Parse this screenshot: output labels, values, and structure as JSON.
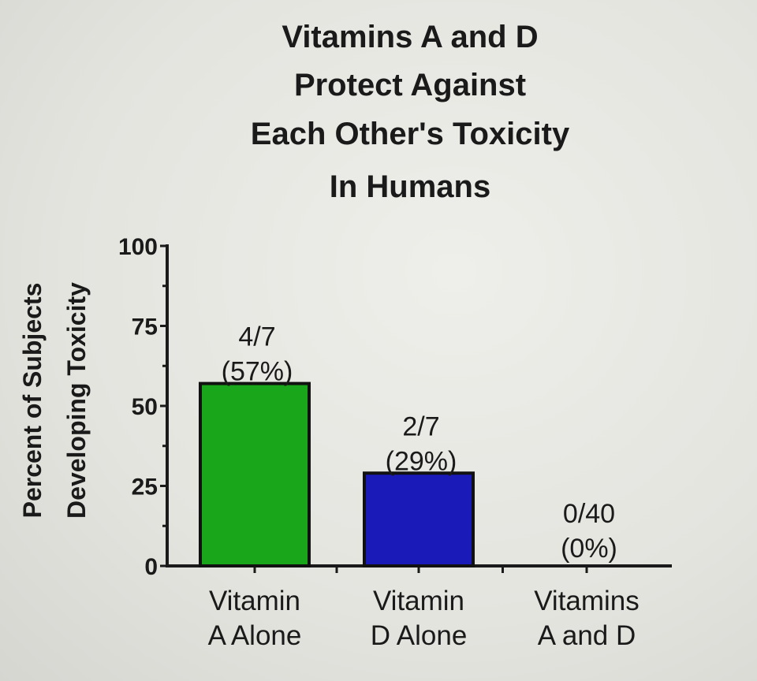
{
  "chart_data": {
    "type": "bar",
    "title_lines": [
      "Vitamins A and D",
      "Protect Against",
      "Each Other's Toxicity",
      "In Humans"
    ],
    "ylabel_lines": [
      "Percent of Subjects",
      "Developing Toxicity"
    ],
    "ylim": [
      0,
      100
    ],
    "yticks": [
      0,
      25,
      50,
      75,
      100
    ],
    "grid": false,
    "legend": "none",
    "categories": [
      {
        "lines": [
          "Vitamin",
          "A Alone"
        ]
      },
      {
        "lines": [
          "Vitamin",
          "D Alone"
        ]
      },
      {
        "lines": [
          "Vitamins",
          "A and D"
        ]
      }
    ],
    "values": [
      57,
      29,
      0
    ],
    "data_labels": [
      [
        "4/7",
        "(57%)"
      ],
      [
        "2/7",
        "(29%)"
      ],
      [
        "0/40",
        "(0%)"
      ]
    ],
    "colors": [
      "#1aa61a",
      "#1a1ab8",
      "#1a1ab8"
    ]
  }
}
